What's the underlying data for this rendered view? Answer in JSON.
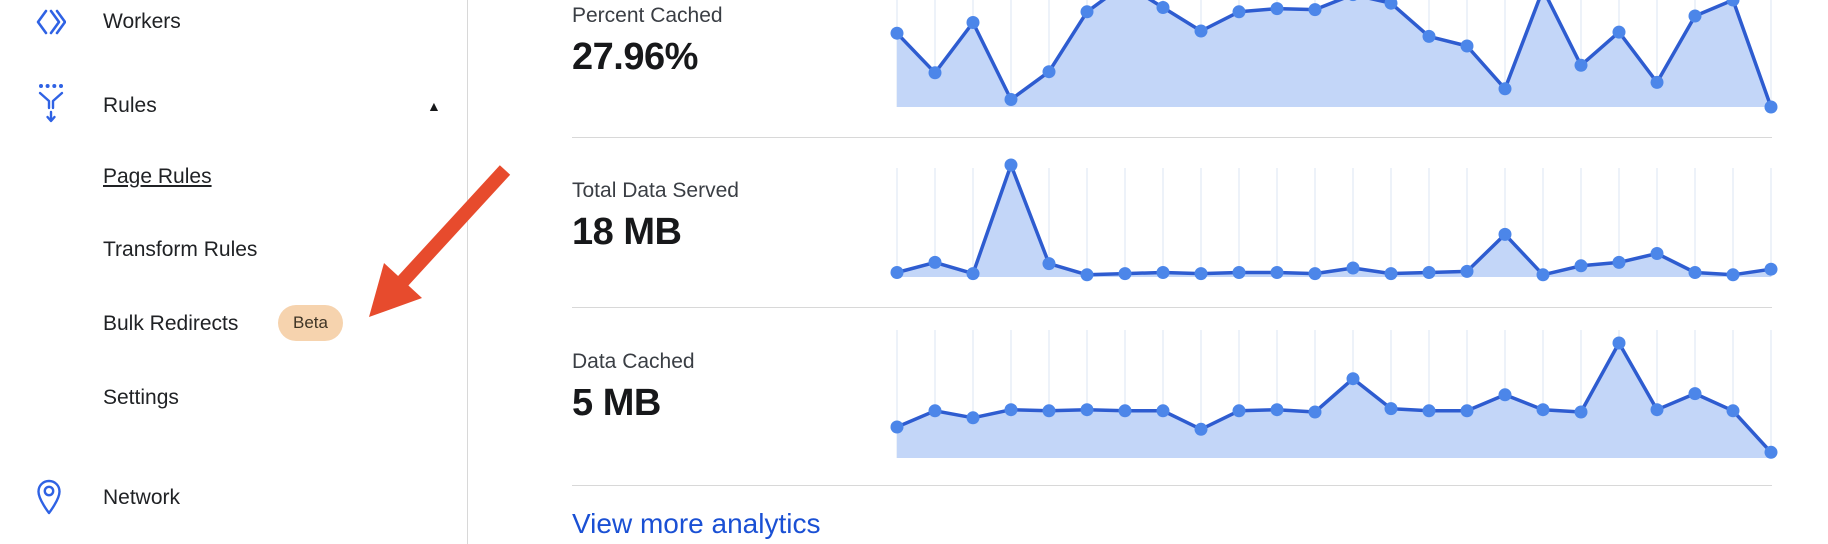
{
  "sidebar": {
    "caret": "▲",
    "items": [
      {
        "label": "Workers",
        "icon": "workers-icon"
      },
      {
        "label": "Rules",
        "icon": "filter-icon",
        "expanded": true
      },
      {
        "label": "Page Rules",
        "sub": true,
        "underlined": true
      },
      {
        "label": "Transform Rules",
        "sub": true
      },
      {
        "label": "Bulk Redirects",
        "sub": true,
        "badge": "Beta"
      },
      {
        "label": "Settings",
        "sub": true
      },
      {
        "label": "Network",
        "icon": "pin-icon"
      }
    ]
  },
  "analytics": {
    "stats": [
      {
        "label": "Percent Cached",
        "value": "27.96%"
      },
      {
        "label": "Total Data Served",
        "value": "18 MB"
      },
      {
        "label": "Data Cached",
        "value": "5 MB"
      }
    ],
    "link": "View more analytics"
  },
  "annotation": {
    "type": "red-arrow",
    "points_at": "Bulk Redirects Beta badge",
    "color": "#e74b2d"
  },
  "colors": {
    "chart_line": "#2e5cd0",
    "chart_dot": "#4c86e9",
    "chart_fill": "#c3d6f8",
    "chart_grid": "#edf2f9",
    "divider": "#d8d8d8",
    "link_blue": "#1a50d4",
    "icon_blue": "#2f62e4",
    "badge_bg": "#f6d3ae",
    "badge_text": "#3f3526",
    "arrow_red": "#e74b2d"
  },
  "chart_data": [
    {
      "type": "area",
      "title": "Percent Cached",
      "headline_value": "27.96%",
      "points": 24,
      "x_axis": "time (no tick labels shown)",
      "y_axis": "none shown (sparkline)",
      "gridlines": "vertical line at each data point",
      "scale": "values normalized 0-1 to visible chart height; values > 1 are clipped by the top of the viewport",
      "values_norm": [
        0.69,
        0.32,
        0.79,
        0.07,
        0.33,
        0.89,
        1.15,
        0.93,
        0.71,
        0.89,
        0.92,
        0.91,
        1.05,
        0.97,
        0.66,
        0.57,
        0.17,
        1.1,
        0.39,
        0.7,
        0.23,
        0.85,
        1.0,
        0.0
      ]
    },
    {
      "type": "area",
      "title": "Total Data Served",
      "headline_value": "18 MB",
      "points": 24,
      "x_axis": "time (no tick labels shown)",
      "y_axis": "none shown (sparkline)",
      "gridlines": "vertical line at each data point",
      "scale": "values normalized 0-1 to chart height (1 = tallest spike)",
      "values_norm": [
        0.04,
        0.13,
        0.03,
        1.0,
        0.12,
        0.02,
        0.03,
        0.04,
        0.03,
        0.04,
        0.04,
        0.03,
        0.08,
        0.03,
        0.04,
        0.05,
        0.38,
        0.02,
        0.1,
        0.13,
        0.21,
        0.04,
        0.02,
        0.07
      ]
    },
    {
      "type": "area",
      "title": "Data Cached",
      "headline_value": "5 MB",
      "points": 24,
      "x_axis": "time (no tick labels shown)",
      "y_axis": "none shown (sparkline)",
      "gridlines": "vertical line at each data point",
      "scale": "values normalized 0-1 to chart height (1 = tallest spike)",
      "values_norm": [
        0.27,
        0.41,
        0.35,
        0.42,
        0.41,
        0.42,
        0.41,
        0.41,
        0.25,
        0.41,
        0.42,
        0.4,
        0.69,
        0.43,
        0.41,
        0.41,
        0.55,
        0.42,
        0.4,
        1.0,
        0.42,
        0.56,
        0.41,
        0.05
      ]
    }
  ]
}
